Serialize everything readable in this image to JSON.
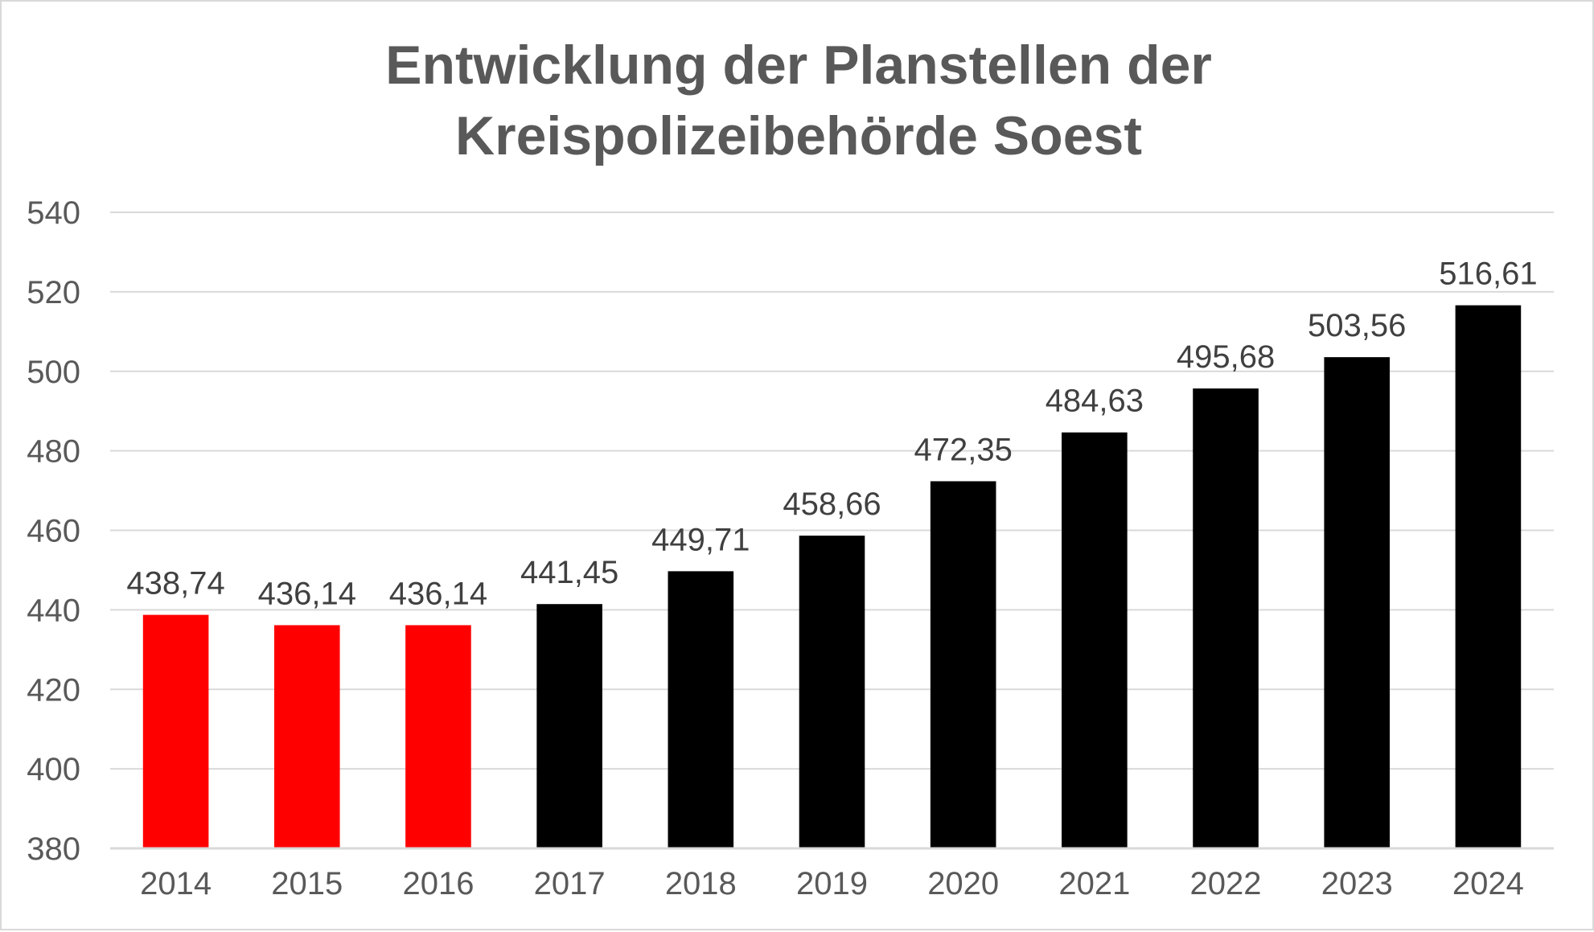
{
  "chart_data": {
    "type": "bar",
    "title": [
      "Entwicklung der Planstellen der",
      "Kreispolizeibehörde Soest"
    ],
    "categories": [
      "2014",
      "2015",
      "2016",
      "2017",
      "2018",
      "2019",
      "2020",
      "2021",
      "2022",
      "2023",
      "2024"
    ],
    "values": [
      438.74,
      436.14,
      436.14,
      441.45,
      449.71,
      458.66,
      472.35,
      484.63,
      495.68,
      503.56,
      516.61
    ],
    "data_labels": [
      "438,74",
      "436,14",
      "436,14",
      "441,45",
      "449,71",
      "458,66",
      "472,35",
      "484,63",
      "495,68",
      "503,56",
      "516,61"
    ],
    "bar_colors": [
      "#ff0000",
      "#ff0000",
      "#ff0000",
      "#000000",
      "#000000",
      "#000000",
      "#000000",
      "#000000",
      "#000000",
      "#000000",
      "#000000"
    ],
    "ylim": [
      380,
      540
    ],
    "yticks": [
      380,
      400,
      420,
      440,
      460,
      480,
      500,
      520,
      540
    ],
    "xlabel": "",
    "ylabel": "",
    "grid": true,
    "legend": false
  }
}
